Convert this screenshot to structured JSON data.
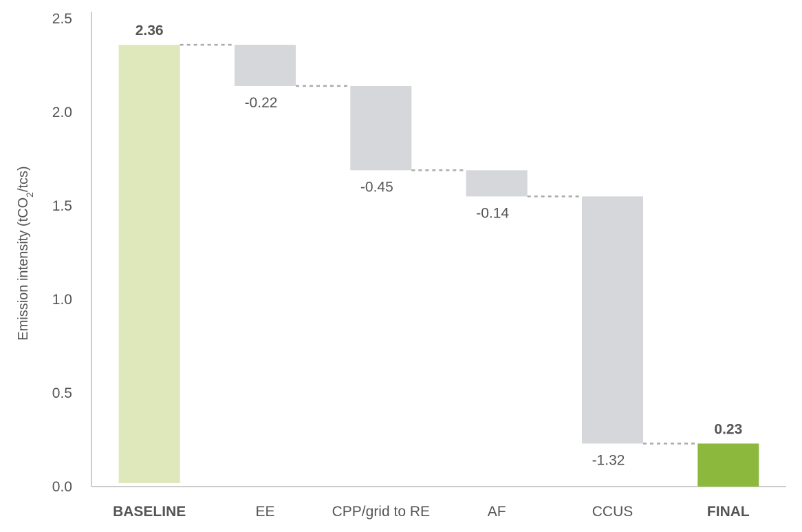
{
  "chart_data": {
    "type": "bar",
    "subtype": "waterfall",
    "categories": [
      "BASELINE",
      "EE",
      "CPP/grid to RE",
      "AF",
      "CCUS",
      "FINAL"
    ],
    "values": [
      2.36,
      -0.22,
      -0.45,
      -0.14,
      -1.32,
      0.23
    ],
    "data_labels": [
      "2.36",
      "-0.22",
      "-0.45",
      "-0.14",
      "-1.32",
      "0.23"
    ],
    "bar_kinds": [
      "total",
      "delta",
      "delta",
      "delta",
      "delta",
      "total"
    ],
    "bold_categories": [
      "BASELINE",
      "FINAL"
    ],
    "title": "",
    "xlabel": "",
    "ylabel": {
      "prefix": "Emission intensity (tCO",
      "subscript": "2",
      "suffix": "/tcs)"
    },
    "ylim": [
      0,
      2.5
    ],
    "yticks": [
      "0.0",
      "0.5",
      "1.0",
      "1.5",
      "2.0",
      "2.5"
    ],
    "ytick_values": [
      0,
      0.5,
      1.0,
      1.5,
      2.0,
      2.5
    ],
    "grid": false,
    "legend": "none",
    "colors": {
      "baseline": "#dfe8bb",
      "delta": "#d6d7db",
      "final": "#8db83e",
      "connector": "#aaaaaa",
      "axis": "#bbbbbb",
      "text": "#555555"
    }
  }
}
